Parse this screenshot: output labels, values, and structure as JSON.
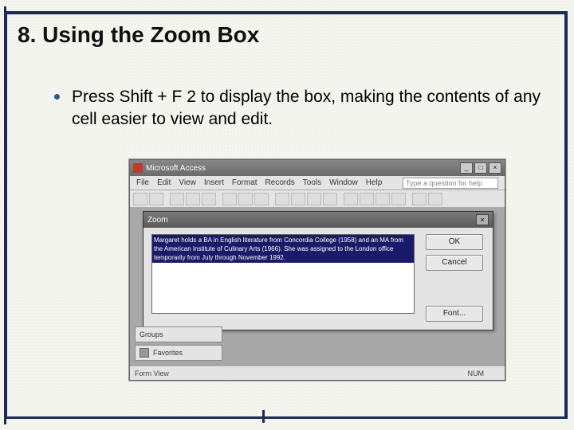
{
  "slide": {
    "title": "8. Using the Zoom Box",
    "bullet": "Press Shift + F 2 to display the box, making the contents of any cell easier to view and edit."
  },
  "access": {
    "app_title": "Microsoft Access",
    "menus": [
      "File",
      "Edit",
      "View",
      "Insert",
      "Format",
      "Records",
      "Tools",
      "Window",
      "Help"
    ],
    "help_placeholder": "Type a question for help",
    "left_panel": {
      "groups": "Groups",
      "favorites": "Favorites"
    },
    "status": {
      "left": "Form View",
      "num": "NUM"
    }
  },
  "zoom": {
    "title": "Zoom",
    "text": "Margaret holds a BA in English literature from Concordia College (1958) and an MA from the American Institute of Culinary Arts (1966). She was assigned to the London office temporarily from July through November 1992.",
    "ok": "OK",
    "cancel": "Cancel",
    "font": "Font..."
  },
  "colors": {
    "frame": "#1a2a5a",
    "bullet": "#2a5a8a",
    "selection_bg": "#1a1a6a"
  }
}
